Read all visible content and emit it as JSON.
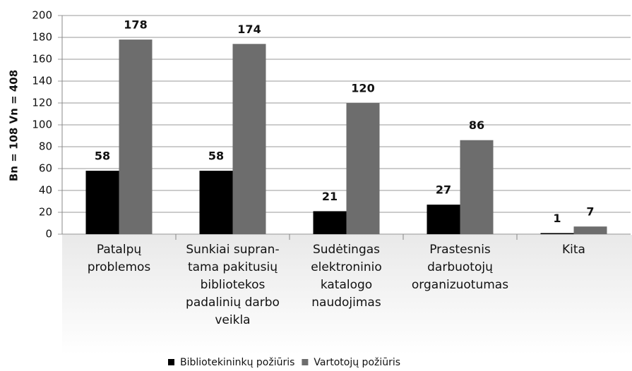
{
  "chart_data": {
    "type": "bar",
    "y_label": "Bn = 108  Vn = 408",
    "categories": [
      [
        "Patalpų",
        "problemos"
      ],
      [
        "Sunkiai supran-",
        "tama pakitusių",
        "bibliotekos",
        "padalinių darbo",
        "veikla"
      ],
      [
        "Sudėtingas",
        "elektroninio",
        "katalogo",
        "naudojimas"
      ],
      [
        "Prastesnis",
        "darbuotojų",
        "organizuotumas"
      ],
      [
        "Kita"
      ]
    ],
    "series": [
      {
        "name": "Bibliotekininkų požiūris",
        "color": "#000000",
        "values": [
          58,
          58,
          21,
          27,
          1
        ]
      },
      {
        "name": "Vartotojų požiūris",
        "color": "#6d6d6d",
        "values": [
          178,
          174,
          120,
          86,
          7
        ]
      }
    ],
    "ylim": [
      0,
      200
    ],
    "yticks": [
      0,
      20,
      40,
      60,
      80,
      100,
      120,
      140,
      160,
      180,
      200
    ],
    "grid": true,
    "legend": "bottom"
  }
}
